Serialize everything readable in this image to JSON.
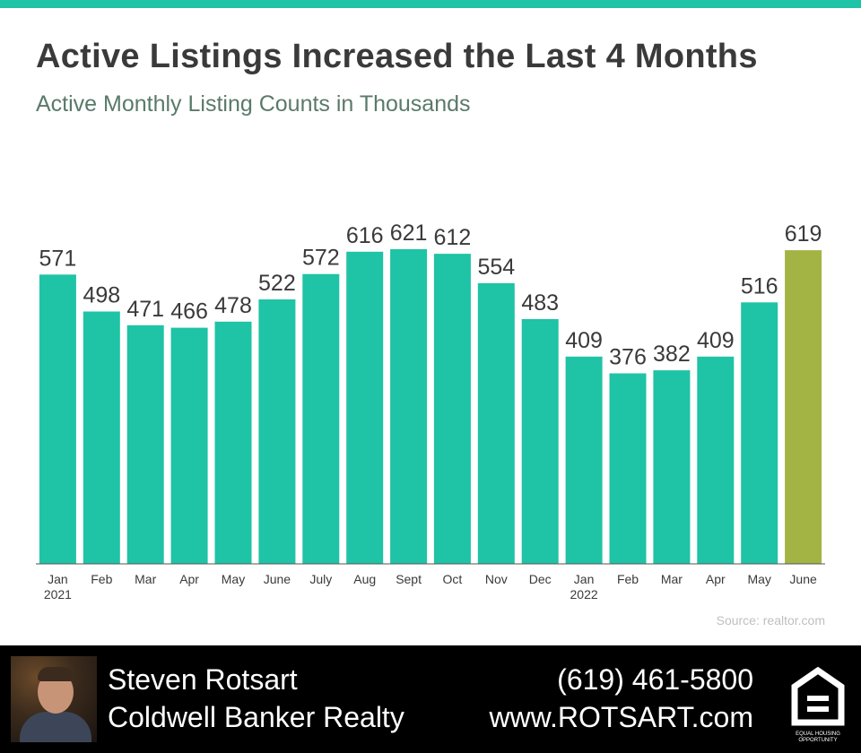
{
  "header": {
    "title": "Active Listings Increased the Last 4 Months",
    "subtitle": "Active Monthly Listing Counts in Thousands"
  },
  "colors": {
    "accent": "#1fc3a5",
    "bar": "#1fc3a5",
    "bar_highlight": "#a3b444",
    "text": "#3a3a3a"
  },
  "chart_data": {
    "type": "bar",
    "title": "Active Listings Increased the Last 4 Months",
    "subtitle": "Active Monthly Listing Counts in Thousands",
    "categories": [
      [
        "Jan",
        "2021"
      ],
      [
        "Feb"
      ],
      [
        "Mar"
      ],
      [
        "Apr"
      ],
      [
        "May"
      ],
      [
        "June"
      ],
      [
        "July"
      ],
      [
        "Aug"
      ],
      [
        "Sept"
      ],
      [
        "Oct"
      ],
      [
        "Nov"
      ],
      [
        "Dec"
      ],
      [
        "Jan",
        "2022"
      ],
      [
        "Feb"
      ],
      [
        "Mar"
      ],
      [
        "Apr"
      ],
      [
        "May"
      ],
      [
        "June"
      ]
    ],
    "values": [
      571,
      498,
      471,
      466,
      478,
      522,
      572,
      616,
      621,
      612,
      554,
      483,
      409,
      376,
      382,
      409,
      516,
      619
    ],
    "highlight_index": 17,
    "data_labels": true,
    "ylim": [
      0,
      621
    ],
    "grid": false,
    "xlabel": "",
    "ylabel": ""
  },
  "source": "Source: realtor.com",
  "footer": {
    "name": "Steven Rotsart",
    "company": "Coldwell Banker Realty",
    "phone": "(619) 461-5800",
    "website": "www.ROTSART.com",
    "eho_label": "EQUAL HOUSING OPPORTUNITY",
    "eho_icon": "equal-housing-opportunity-logo",
    "photo_icon": "agent-photo"
  }
}
